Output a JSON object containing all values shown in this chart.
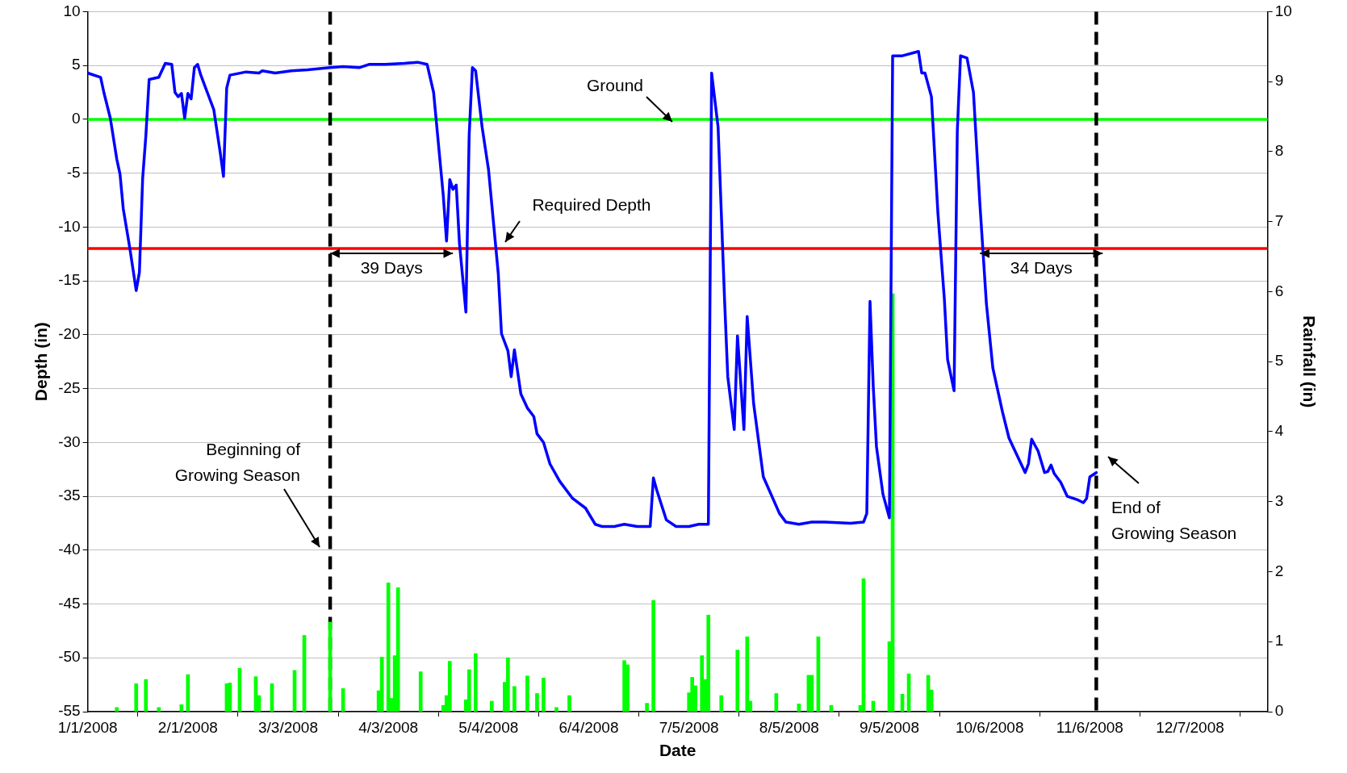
{
  "chart_data": {
    "type": "line",
    "xlabel": "Date",
    "ylabel": "Depth (in)",
    "y2label": "Rainfall (in)",
    "xlim": [
      "2008-01-01",
      "2008-12-31"
    ],
    "xticks": [
      {
        "value": "2008-01-01",
        "label": "1/1/2008"
      },
      {
        "value": "2008-02-01",
        "label": "2/1/2008"
      },
      {
        "value": "2008-03-03",
        "label": "3/3/2008"
      },
      {
        "value": "2008-04-03",
        "label": "4/3/2008"
      },
      {
        "value": "2008-05-04",
        "label": "5/4/2008"
      },
      {
        "value": "2008-06-04",
        "label": "6/4/2008"
      },
      {
        "value": "2008-07-05",
        "label": "7/5/2008"
      },
      {
        "value": "2008-08-05",
        "label": "8/5/2008"
      },
      {
        "value": "2008-09-05",
        "label": "9/5/2008"
      },
      {
        "value": "2008-10-06",
        "label": "10/6/2008"
      },
      {
        "value": "2008-11-06",
        "label": "11/6/2008"
      },
      {
        "value": "2008-12-07",
        "label": "12/7/2008"
      }
    ],
    "ylim": [
      -55,
      10
    ],
    "yticks": [
      -55,
      -50,
      -45,
      -40,
      -35,
      -30,
      -25,
      -20,
      -15,
      -10,
      -5,
      0,
      5,
      10
    ],
    "y2lim": [
      0,
      10
    ],
    "y2ticks": [
      0,
      1,
      2,
      3,
      4,
      5,
      6,
      7,
      8,
      9,
      10
    ],
    "grid": "y",
    "legend": false,
    "marker": "none",
    "line_style": "solid",
    "series": [
      {
        "color": "#0000ff",
        "x": [
          "2008-01-01",
          "2008-01-05",
          "2008-01-06",
          "2008-01-08",
          "2008-01-10",
          "2008-01-11",
          "2008-01-12",
          "2008-01-14",
          "2008-01-16",
          "2008-01-17",
          "2008-01-18",
          "2008-01-19",
          "2008-01-20",
          "2008-01-23",
          "2008-01-25",
          "2008-01-27",
          "2008-01-28",
          "2008-01-29",
          "2008-01-30",
          "2008-01-31",
          "2008-02-01",
          "2008-02-02",
          "2008-02-03",
          "2008-02-04",
          "2008-02-05",
          "2008-02-09",
          "2008-02-11",
          "2008-02-12",
          "2008-02-13",
          "2008-02-14",
          "2008-02-19",
          "2008-02-23",
          "2008-02-24",
          "2008-02-28",
          "2008-03-04",
          "2008-03-09",
          "2008-03-16",
          "2008-03-20",
          "2008-03-25",
          "2008-03-28",
          "2008-04-02",
          "2008-04-08",
          "2008-04-12",
          "2008-04-15",
          "2008-04-17",
          "2008-04-19",
          "2008-04-20",
          "2008-04-21",
          "2008-04-22",
          "2008-04-23",
          "2008-04-24",
          "2008-04-25",
          "2008-04-27",
          "2008-04-28",
          "2008-04-29",
          "2008-04-30",
          "2008-05-02",
          "2008-05-04",
          "2008-05-07",
          "2008-05-08",
          "2008-05-10",
          "2008-05-11",
          "2008-05-12",
          "2008-05-14",
          "2008-05-16",
          "2008-05-18",
          "2008-05-19",
          "2008-05-21",
          "2008-05-23",
          "2008-05-26",
          "2008-05-30",
          "2008-06-03",
          "2008-06-06",
          "2008-06-08",
          "2008-06-12",
          "2008-06-15",
          "2008-06-19",
          "2008-06-23",
          "2008-06-24",
          "2008-06-25",
          "2008-06-28",
          "2008-07-01",
          "2008-07-05",
          "2008-07-08",
          "2008-07-11",
          "2008-07-12",
          "2008-07-14",
          "2008-07-16",
          "2008-07-17",
          "2008-07-19",
          "2008-07-20",
          "2008-07-22",
          "2008-07-23",
          "2008-07-25",
          "2008-07-28",
          "2008-08-02",
          "2008-08-04",
          "2008-08-08",
          "2008-08-12",
          "2008-08-16",
          "2008-08-24",
          "2008-08-28",
          "2008-08-29",
          "2008-08-30",
          "2008-08-31",
          "2008-09-01",
          "2008-09-03",
          "2008-09-05",
          "2008-09-06",
          "2008-09-09",
          "2008-09-14",
          "2008-09-15",
          "2008-09-16",
          "2008-09-18",
          "2008-09-20",
          "2008-09-22",
          "2008-09-23",
          "2008-09-25",
          "2008-09-26",
          "2008-09-27",
          "2008-09-29",
          "2008-10-01",
          "2008-10-03",
          "2008-10-05",
          "2008-10-07",
          "2008-10-10",
          "2008-10-12",
          "2008-10-17",
          "2008-10-18",
          "2008-10-19",
          "2008-10-21",
          "2008-10-23",
          "2008-10-24",
          "2008-10-25",
          "2008-10-26",
          "2008-10-28",
          "2008-10-30",
          "2008-11-02",
          "2008-11-04",
          "2008-11-05",
          "2008-11-06",
          "2008-11-08"
        ],
        "values": [
          4.3,
          3.9,
          2.5,
          0.1,
          -3.7,
          -5.1,
          -8.3,
          -11.9,
          -15.9,
          -14.2,
          -5.5,
          -1.5,
          3.7,
          3.9,
          5.2,
          5.1,
          2.5,
          2.1,
          2.4,
          0.1,
          2.4,
          1.9,
          4.8,
          5.1,
          4.1,
          0.9,
          -3.1,
          -5.3,
          2.9,
          4.1,
          4.4,
          4.3,
          4.5,
          4.3,
          4.5,
          4.6,
          4.8,
          4.9,
          4.8,
          5.1,
          5.1,
          5.2,
          5.3,
          5.1,
          2.5,
          -3.9,
          -7.1,
          -11.3,
          -5.6,
          -6.5,
          -6.1,
          -11.5,
          -17.9,
          -1.5,
          4.8,
          4.5,
          -0.7,
          -4.7,
          -14.3,
          -19.9,
          -21.5,
          -23.9,
          -21.4,
          -25.5,
          -26.8,
          -27.6,
          -29.2,
          -30,
          -32,
          -33.6,
          -35.2,
          -36.1,
          -37.6,
          -37.8,
          -37.8,
          -37.6,
          -37.8,
          -37.8,
          -33.3,
          -34.4,
          -37.2,
          -37.8,
          -37.8,
          -37.6,
          -37.6,
          4.3,
          -0.7,
          -16.7,
          -23.9,
          -28.8,
          -20.1,
          -28.8,
          -18.3,
          -26.4,
          -33.2,
          -36.6,
          -37.4,
          -37.6,
          -37.4,
          -37.4,
          -37.5,
          -37.4,
          -36.6,
          -16.9,
          -24.8,
          -30.4,
          -34.8,
          -37,
          5.9,
          5.9,
          6.3,
          4.3,
          4.3,
          2.1,
          -8.7,
          -16.7,
          -22.3,
          -25.2,
          -1.1,
          5.9,
          5.7,
          2.5,
          -7.9,
          -17.1,
          -23.1,
          -27.2,
          -29.6,
          -32.8,
          -32,
          -29.7,
          -30.8,
          -32.8,
          -32.7,
          -32.1,
          -32.9,
          -33.7,
          -35,
          -35.3,
          -35.6,
          -35.2,
          -33.2,
          -32.8
        ]
      },
      {
        "type": "bar",
        "axis": "y2",
        "color": "#00ff00",
        "x": [
          "2008-01-10",
          "2008-01-16",
          "2008-01-19",
          "2008-01-23",
          "2008-01-30",
          "2008-02-01",
          "2008-02-13",
          "2008-02-14",
          "2008-02-17",
          "2008-02-22",
          "2008-02-23",
          "2008-02-27",
          "2008-03-05",
          "2008-03-08",
          "2008-03-16",
          "2008-03-20",
          "2008-03-31",
          "2008-04-01",
          "2008-04-03",
          "2008-04-04",
          "2008-04-05",
          "2008-04-06",
          "2008-04-13",
          "2008-04-20",
          "2008-04-21",
          "2008-04-22",
          "2008-04-27",
          "2008-04-28",
          "2008-04-30",
          "2008-05-05",
          "2008-05-09",
          "2008-05-10",
          "2008-05-12",
          "2008-05-16",
          "2008-05-19",
          "2008-05-21",
          "2008-05-25",
          "2008-05-29",
          "2008-06-15",
          "2008-06-16",
          "2008-06-22",
          "2008-06-24",
          "2008-07-05",
          "2008-07-06",
          "2008-07-07",
          "2008-07-09",
          "2008-07-10",
          "2008-07-11",
          "2008-07-15",
          "2008-07-20",
          "2008-07-23",
          "2008-07-24",
          "2008-08-01",
          "2008-08-08",
          "2008-08-11",
          "2008-08-12",
          "2008-08-14",
          "2008-08-18",
          "2008-08-27",
          "2008-08-28",
          "2008-08-31",
          "2008-09-05",
          "2008-09-06",
          "2008-09-09",
          "2008-09-11",
          "2008-09-17",
          "2008-09-18"
        ],
        "values": [
          0.06,
          0.4,
          0.46,
          0.06,
          0.1,
          0.53,
          0.4,
          0.41,
          0.62,
          0.5,
          0.23,
          0.4,
          0.59,
          1.09,
          1.28,
          0.33,
          0.3,
          0.78,
          1.84,
          0.19,
          0.8,
          1.77,
          0.57,
          0.09,
          0.23,
          0.72,
          0.17,
          0.6,
          0.83,
          0.15,
          0.42,
          0.77,
          0.36,
          0.51,
          0.26,
          0.48,
          0.06,
          0.23,
          0.73,
          0.67,
          0.12,
          1.59,
          0.27,
          0.49,
          0.37,
          0.8,
          0.46,
          1.38,
          0.23,
          0.88,
          1.07,
          0.15,
          0.26,
          0.11,
          0.52,
          0.52,
          1.07,
          0.09,
          0.09,
          1.9,
          0.15,
          1.0,
          5.97,
          0.25,
          0.54,
          0.52,
          0.31
        ]
      }
    ],
    "ref_lines": [
      {
        "axis": "y",
        "value": 0,
        "label": "Ground",
        "color": "#00ff00",
        "line_style": "solid"
      },
      {
        "axis": "y",
        "value": -12,
        "label": "Required Depth",
        "color": "#ff0000",
        "line_style": "solid"
      },
      {
        "axis": "x",
        "value": "2008-03-16",
        "label": "Beginning of\nGrowing Season",
        "color": "#000000",
        "line_style": "dashed"
      },
      {
        "axis": "x",
        "value": "2008-11-08",
        "label": "End of\nGrowing Season",
        "color": "#000000",
        "line_style": "dashed"
      }
    ],
    "annotations": [
      {
        "text": "39 Days",
        "x": "2008-04-04",
        "y": -12
      },
      {
        "text": "34 Days",
        "x": "2008-10-22",
        "y": -12
      }
    ]
  }
}
